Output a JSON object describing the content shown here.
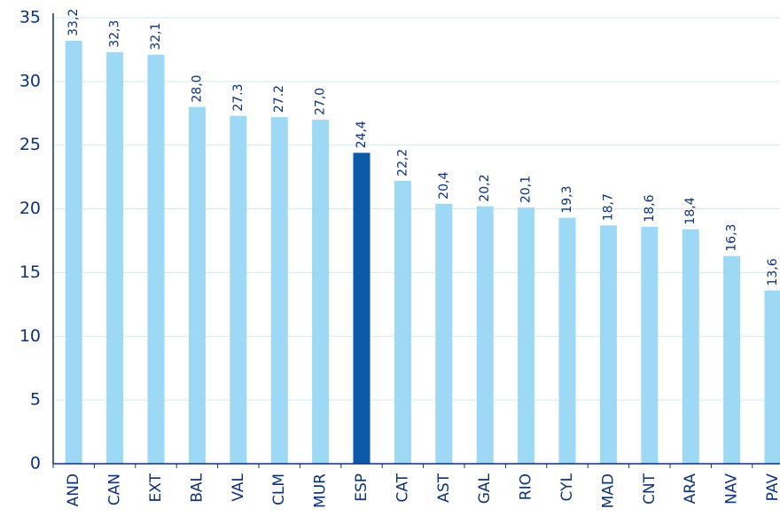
{
  "chart_data": {
    "type": "bar",
    "categories": [
      "AND",
      "CAN",
      "EXT",
      "BAL",
      "VAL",
      "CLM",
      "MUR",
      "ESP",
      "CAT",
      "AST",
      "GAL",
      "RIO",
      "CYL",
      "MAD",
      "CNT",
      "ARA",
      "NAV",
      "PAV"
    ],
    "values": [
      33.2,
      32.3,
      32.1,
      28.0,
      27.3,
      27.2,
      27.0,
      24.4,
      22.2,
      20.4,
      20.2,
      20.1,
      19.3,
      18.7,
      18.6,
      18.4,
      16.3,
      13.6
    ],
    "value_labels": [
      "33,2",
      "32,3",
      "32,1",
      "28,0",
      "27.3",
      "27.2",
      "27,0",
      "24,4",
      "22,2",
      "20,4",
      "20,2",
      "20,1",
      "19,3",
      "18,7",
      "18,6",
      "18,4",
      "16,3",
      "13,6"
    ],
    "colors": [
      "#9dd8f4",
      "#9dd8f4",
      "#9dd8f4",
      "#9dd8f4",
      "#9dd8f4",
      "#9dd8f4",
      "#9dd8f4",
      "#0b5aa8",
      "#9dd8f4",
      "#9dd8f4",
      "#9dd8f4",
      "#9dd8f4",
      "#9dd8f4",
      "#9dd8f4",
      "#9dd8f4",
      "#9dd8f4",
      "#9dd8f4",
      "#9dd8f4"
    ],
    "ylim": [
      0,
      35
    ],
    "yticks": [
      0,
      5,
      10,
      15,
      20,
      25,
      30,
      35
    ],
    "grid": true
  }
}
